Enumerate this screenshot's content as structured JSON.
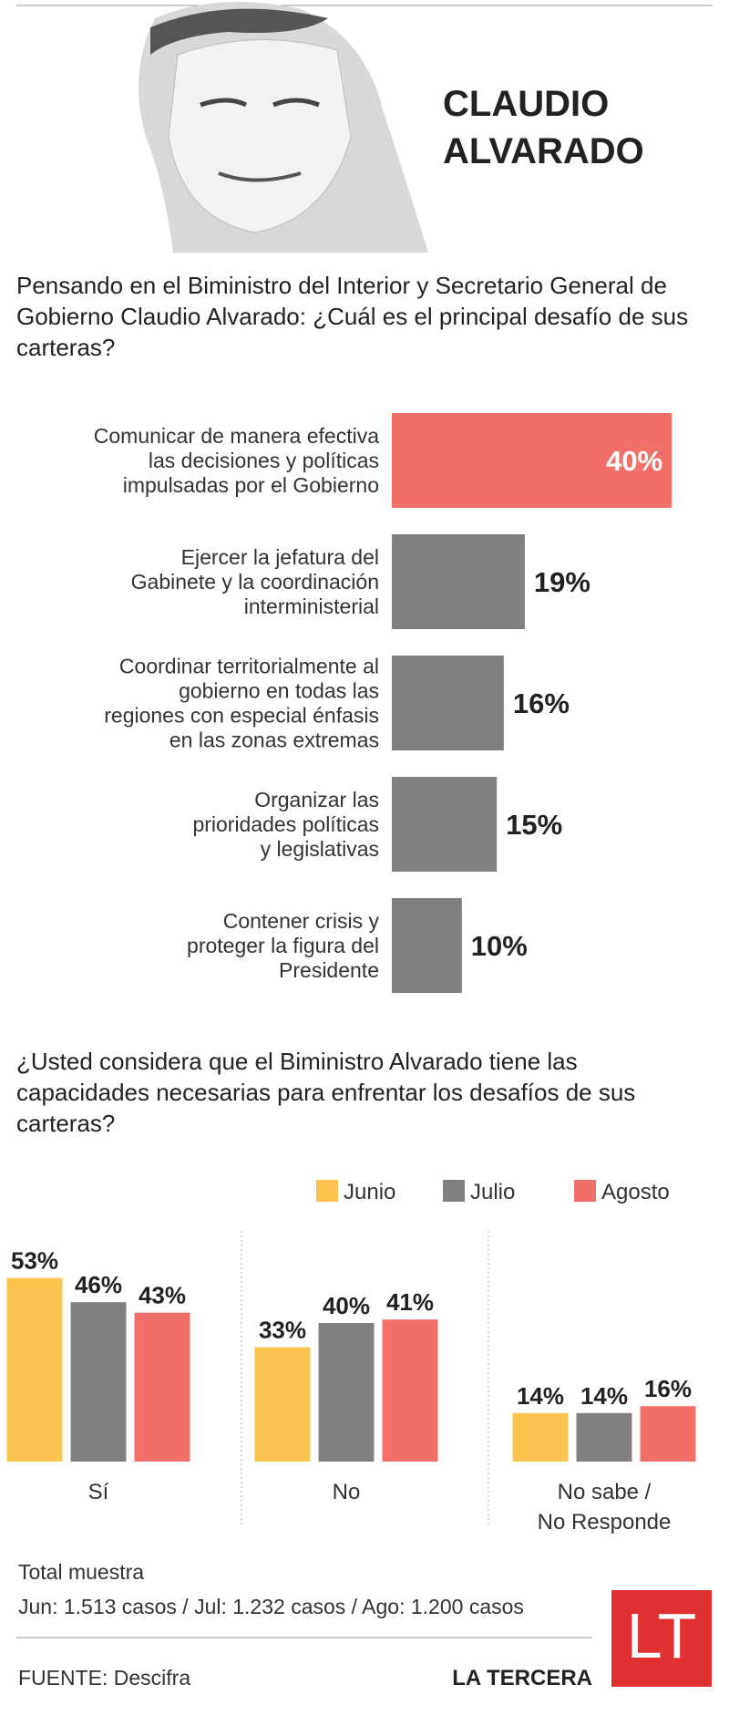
{
  "header": {
    "name": [
      "CLAUDIO",
      "ALVARADO"
    ]
  },
  "chart_data": [
    {
      "type": "hbar",
      "title": "Pensando en el Biministro del Interior y Secretario General de Gobierno Claudio Alvarado: ¿Cuál es el principal desafío de sus carteras?",
      "categories": [
        [
          "Comunicar de manera efectiva",
          "las decisiones y políticas",
          "impulsadas por el Gobierno"
        ],
        [
          "Ejercer la jefatura del",
          "Gabinete y la coordinación",
          "interministerial"
        ],
        [
          "Coordinar territorialmente al",
          "gobierno en todas las",
          "regiones con especial énfasis",
          "en las zonas extremas"
        ],
        [
          "Organizar las",
          "prioridades políticas",
          "y legislativas"
        ],
        [
          "Contener crisis y",
          "proteger la figura del",
          "Presidente"
        ]
      ],
      "values": [
        40,
        19,
        16,
        15,
        10
      ],
      "value_labels": [
        "40%",
        "19%",
        "16%",
        "15%",
        "10%"
      ],
      "colors": [
        "#f2706a",
        "#808080",
        "#808080",
        "#808080",
        "#808080"
      ]
    },
    {
      "type": "grouped-bar",
      "title": "¿Usted considera que el Biministro Alvarado tiene las capacidades necesarias para enfrentar los desafíos de sus carteras?",
      "categories": [
        [
          "Sí"
        ],
        [
          "No"
        ],
        [
          "No sabe /",
          "No Responde"
        ]
      ],
      "series": [
        {
          "name": "Junio",
          "color": "#fcc44f",
          "values": [
            53,
            33,
            14
          ],
          "value_labels": [
            "53%",
            "33%",
            "14%"
          ]
        },
        {
          "name": "Julio",
          "color": "#808080",
          "values": [
            46,
            40,
            14
          ],
          "value_labels": [
            "46%",
            "40%",
            "14%"
          ]
        },
        {
          "name": "Agosto",
          "color": "#f2706a",
          "values": [
            43,
            41,
            16
          ],
          "value_labels": [
            "43%",
            "41%",
            "16%"
          ]
        }
      ]
    }
  ],
  "footer": {
    "sample_title": "Total muestra",
    "sample": "Jun: 1.513 casos / Jul: 1.232 casos / Ago: 1.200 casos",
    "source": "FUENTE: Descifra",
    "brand": "LA TERCERA",
    "logo": "LT"
  }
}
